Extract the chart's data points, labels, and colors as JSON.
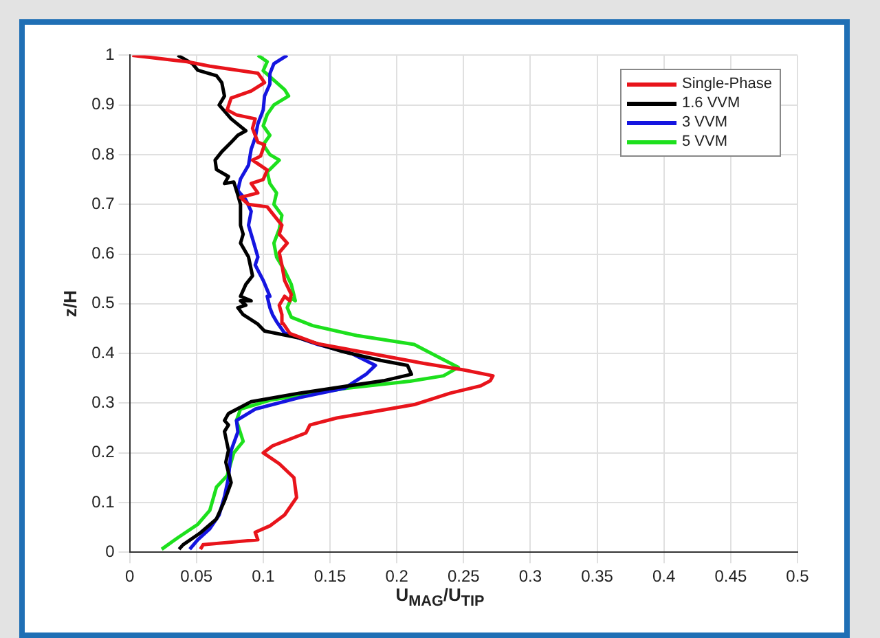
{
  "chart_data": {
    "type": "line",
    "xlabel": "U$_{MAG}$/U$_{TIP}$",
    "ylabel": "z/H",
    "xlim": [
      0,
      0.5
    ],
    "ylim": [
      0,
      1
    ],
    "xticks": [
      0,
      0.05,
      0.1,
      0.15,
      0.2,
      0.25,
      0.3,
      0.35,
      0.4,
      0.45,
      0.5
    ],
    "yticks": [
      0,
      0.1,
      0.2,
      0.3,
      0.4,
      0.5,
      0.6,
      0.7,
      0.8,
      0.9,
      1
    ],
    "grid": true,
    "legend": "top right",
    "line_style": "solid",
    "marker": "none",
    "series": [
      {
        "name": "Single-Phase",
        "color": "#e8141b",
        "x": [
          0.053,
          0.055,
          0.096,
          0.094,
          0.105,
          0.116,
          0.125,
          0.123,
          0.112,
          0.1,
          0.107,
          0.132,
          0.135,
          0.155,
          0.213,
          0.24,
          0.263,
          0.27,
          0.272,
          0.25,
          0.22,
          0.18,
          0.14,
          0.12,
          0.115,
          0.114,
          0.112,
          0.116,
          0.12,
          0.121,
          0.116,
          0.114,
          0.112,
          0.118,
          0.112,
          0.114,
          0.108,
          0.103,
          0.089,
          0.083,
          0.096,
          0.091,
          0.1,
          0.103,
          0.092,
          0.098,
          0.101,
          0.096,
          0.092,
          0.094,
          0.08,
          0.073,
          0.076,
          0.091,
          0.101,
          0.096,
          0.06,
          0.043,
          0.002
        ],
        "values": [
          0.006,
          0.015,
          0.025,
          0.04,
          0.053,
          0.075,
          0.11,
          0.15,
          0.178,
          0.2,
          0.214,
          0.24,
          0.256,
          0.27,
          0.297,
          0.32,
          0.335,
          0.345,
          0.355,
          0.367,
          0.38,
          0.4,
          0.42,
          0.44,
          0.46,
          0.478,
          0.497,
          0.515,
          0.506,
          0.519,
          0.547,
          0.578,
          0.603,
          0.622,
          0.64,
          0.658,
          0.678,
          0.695,
          0.7,
          0.714,
          0.723,
          0.742,
          0.75,
          0.769,
          0.789,
          0.797,
          0.82,
          0.825,
          0.853,
          0.872,
          0.88,
          0.89,
          0.914,
          0.928,
          0.945,
          0.964,
          0.978,
          0.987,
          1.0
        ]
      },
      {
        "name": "1.6 VVM",
        "color": "#000000",
        "x": [
          0.037,
          0.04,
          0.053,
          0.065,
          0.071,
          0.076,
          0.072,
          0.074,
          0.071,
          0.074,
          0.071,
          0.074,
          0.091,
          0.127,
          0.162,
          0.19,
          0.211,
          0.208,
          0.188,
          0.159,
          0.127,
          0.101,
          0.096,
          0.085,
          0.081,
          0.087,
          0.083,
          0.091,
          0.083,
          0.087,
          0.092,
          0.089,
          0.083,
          0.085,
          0.083,
          0.083,
          0.081,
          0.078,
          0.071,
          0.074,
          0.065,
          0.064,
          0.069,
          0.076,
          0.081,
          0.087,
          0.076,
          0.067,
          0.071,
          0.069,
          0.065,
          0.051,
          0.047,
          0.036
        ],
        "values": [
          0.006,
          0.015,
          0.039,
          0.067,
          0.103,
          0.14,
          0.181,
          0.205,
          0.243,
          0.256,
          0.265,
          0.279,
          0.303,
          0.32,
          0.334,
          0.345,
          0.358,
          0.376,
          0.386,
          0.404,
          0.431,
          0.445,
          0.459,
          0.478,
          0.492,
          0.497,
          0.506,
          0.506,
          0.515,
          0.539,
          0.556,
          0.594,
          0.622,
          0.64,
          0.658,
          0.7,
          0.719,
          0.745,
          0.742,
          0.756,
          0.77,
          0.789,
          0.806,
          0.825,
          0.839,
          0.848,
          0.872,
          0.9,
          0.918,
          0.945,
          0.959,
          0.97,
          0.983,
          1.0
        ]
      },
      {
        "name": "3 VVM",
        "color": "#1515e0",
        "x": [
          0.045,
          0.051,
          0.06,
          0.067,
          0.071,
          0.074,
          0.076,
          0.081,
          0.08,
          0.094,
          0.127,
          0.161,
          0.177,
          0.184,
          0.166,
          0.141,
          0.116,
          0.11,
          0.107,
          0.105,
          0.103,
          0.105,
          0.1,
          0.094,
          0.096,
          0.092,
          0.089,
          0.091,
          0.087,
          0.081,
          0.083,
          0.089,
          0.091,
          0.094,
          0.096,
          0.1,
          0.101,
          0.105,
          0.105,
          0.108,
          0.118
        ],
        "values": [
          0.006,
          0.025,
          0.047,
          0.075,
          0.112,
          0.15,
          0.205,
          0.242,
          0.265,
          0.288,
          0.311,
          0.33,
          0.358,
          0.376,
          0.4,
          0.418,
          0.441,
          0.464,
          0.478,
          0.492,
          0.515,
          0.515,
          0.547,
          0.578,
          0.594,
          0.631,
          0.658,
          0.686,
          0.709,
          0.728,
          0.751,
          0.779,
          0.811,
          0.834,
          0.862,
          0.89,
          0.918,
          0.942,
          0.963,
          0.983,
          1.0
        ]
      },
      {
        "name": "5 VVM",
        "color": "#1de01d",
        "x": [
          0.024,
          0.036,
          0.051,
          0.06,
          0.065,
          0.073,
          0.078,
          0.085,
          0.08,
          0.083,
          0.105,
          0.162,
          0.21,
          0.235,
          0.246,
          0.213,
          0.17,
          0.137,
          0.121,
          0.118,
          0.121,
          0.124,
          0.121,
          0.116,
          0.11,
          0.108,
          0.112,
          0.114,
          0.108,
          0.11,
          0.105,
          0.103,
          0.112,
          0.105,
          0.1,
          0.105,
          0.1,
          0.103,
          0.108,
          0.119,
          0.116,
          0.108,
          0.1,
          0.103,
          0.096
        ],
        "values": [
          0.006,
          0.029,
          0.056,
          0.084,
          0.131,
          0.154,
          0.2,
          0.223,
          0.265,
          0.288,
          0.306,
          0.33,
          0.344,
          0.355,
          0.372,
          0.418,
          0.436,
          0.456,
          0.473,
          0.492,
          0.511,
          0.506,
          0.539,
          0.567,
          0.594,
          0.622,
          0.65,
          0.678,
          0.7,
          0.723,
          0.742,
          0.765,
          0.789,
          0.8,
          0.82,
          0.839,
          0.858,
          0.881,
          0.9,
          0.918,
          0.931,
          0.95,
          0.969,
          0.987,
          1.0
        ]
      }
    ]
  }
}
